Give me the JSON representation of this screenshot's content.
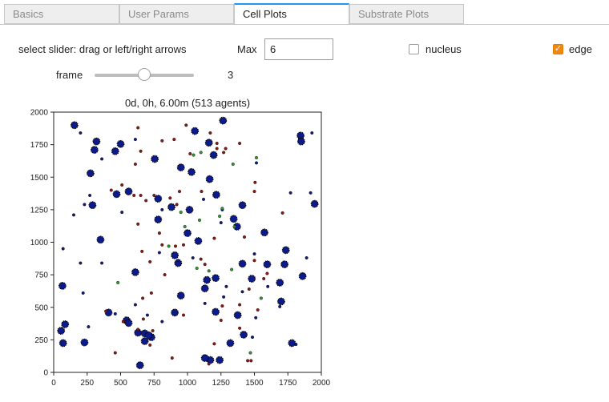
{
  "tabs": [
    {
      "label": "Basics",
      "active": false
    },
    {
      "label": "User Params",
      "active": false
    },
    {
      "label": "Cell Plots",
      "active": true
    },
    {
      "label": "Substrate Plots",
      "active": false
    }
  ],
  "controls": {
    "slider_instruction": "select slider: drag or left/right arrows",
    "max_label": "Max",
    "max_value": "6",
    "nucleus_label": "nucleus",
    "nucleus_checked": false,
    "edge_label": "edge",
    "edge_checked": true,
    "frame_label": "frame",
    "frame_value": "3",
    "accent_color": "#f0880f"
  },
  "chart_data": {
    "type": "scatter",
    "title": "0d, 0h, 6.00m (513 agents)",
    "xlim": [
      0,
      2000
    ],
    "ylim": [
      0,
      2000
    ],
    "xticks": [
      "0",
      "250",
      "500",
      "750",
      "1000",
      "1250",
      "1500",
      "1750",
      "2000"
    ],
    "yticks": [
      "0",
      "250",
      "500",
      "750",
      "1000",
      "1250",
      "1500",
      "1750",
      "2000"
    ],
    "series": [
      {
        "color": "#0b1a8c",
        "kind": "large",
        "points": [
          [
            155,
            1900
          ],
          [
            1265,
            1935
          ],
          [
            1055,
            1855
          ],
          [
            1845,
            1820
          ],
          [
            1850,
            1775
          ],
          [
            320,
            1775
          ],
          [
            305,
            1710
          ],
          [
            500,
            1755
          ],
          [
            460,
            1700
          ],
          [
            755,
            1640
          ],
          [
            1160,
            1765
          ],
          [
            1195,
            1670
          ],
          [
            950,
            1575
          ],
          [
            1030,
            1540
          ],
          [
            1165,
            1485
          ],
          [
            275,
            1530
          ],
          [
            470,
            1370
          ],
          [
            560,
            1390
          ],
          [
            1215,
            1365
          ],
          [
            290,
            1285
          ],
          [
            1950,
            1295
          ],
          [
            780,
            1335
          ],
          [
            880,
            1270
          ],
          [
            1015,
            1250
          ],
          [
            780,
            1175
          ],
          [
            1345,
            1180
          ],
          [
            1410,
            1285
          ],
          [
            1370,
            1120
          ],
          [
            350,
            1020
          ],
          [
            1575,
            1075
          ],
          [
            1000,
            1070
          ],
          [
            1080,
            1010
          ],
          [
            1735,
            940
          ],
          [
            1725,
            830
          ],
          [
            1595,
            830
          ],
          [
            905,
            900
          ],
          [
            930,
            840
          ],
          [
            610,
            770
          ],
          [
            1410,
            835
          ],
          [
            1690,
            690
          ],
          [
            1860,
            740
          ],
          [
            1210,
            725
          ],
          [
            1145,
            710
          ],
          [
            1130,
            645
          ],
          [
            65,
            665
          ],
          [
            1480,
            720
          ],
          [
            1700,
            545
          ],
          [
            950,
            590
          ],
          [
            1375,
            440
          ],
          [
            1210,
            465
          ],
          [
            905,
            460
          ],
          [
            410,
            460
          ],
          [
            545,
            400
          ],
          [
            560,
            380
          ],
          [
            85,
            370
          ],
          [
            55,
            320
          ],
          [
            680,
            300
          ],
          [
            630,
            305
          ],
          [
            680,
            240
          ],
          [
            730,
            270
          ],
          [
            710,
            285
          ],
          [
            1320,
            225
          ],
          [
            1420,
            290
          ],
          [
            1780,
            225
          ],
          [
            70,
            225
          ],
          [
            230,
            230
          ],
          [
            645,
            55
          ],
          [
            1170,
            95
          ],
          [
            1130,
            110
          ],
          [
            1240,
            95
          ]
        ]
      },
      {
        "color": "#8c1a10",
        "kind": "small",
        "points": [
          [
            630,
            1880
          ],
          [
            990,
            1900
          ],
          [
            1170,
            1840
          ],
          [
            900,
            1790
          ],
          [
            1220,
            1760
          ],
          [
            810,
            1780
          ],
          [
            1270,
            1690
          ],
          [
            1220,
            1720
          ],
          [
            1285,
            1720
          ],
          [
            1390,
            1760
          ],
          [
            650,
            1700
          ],
          [
            1020,
            1680
          ],
          [
            610,
            1600
          ],
          [
            510,
            1440
          ],
          [
            430,
            1400
          ],
          [
            600,
            1360
          ],
          [
            650,
            1360
          ],
          [
            750,
            1360
          ],
          [
            870,
            1340
          ],
          [
            940,
            1390
          ],
          [
            1105,
            1390
          ],
          [
            920,
            1290
          ],
          [
            1500,
            1390
          ],
          [
            1505,
            1460
          ],
          [
            1710,
            1225
          ],
          [
            690,
            1320
          ],
          [
            630,
            1140
          ],
          [
            790,
            1070
          ],
          [
            1200,
            1030
          ],
          [
            1425,
            1040
          ],
          [
            810,
            980
          ],
          [
            910,
            970
          ],
          [
            660,
            930
          ],
          [
            720,
            850
          ],
          [
            970,
            980
          ],
          [
            1100,
            870
          ],
          [
            830,
            750
          ],
          [
            1130,
            830
          ],
          [
            1500,
            860
          ],
          [
            1595,
            760
          ],
          [
            1460,
            640
          ],
          [
            1570,
            720
          ],
          [
            1525,
            480
          ],
          [
            730,
            610
          ],
          [
            665,
            570
          ],
          [
            670,
            410
          ],
          [
            1390,
            520
          ],
          [
            1260,
            510
          ],
          [
            970,
            440
          ],
          [
            390,
            470
          ],
          [
            1250,
            400
          ],
          [
            1390,
            340
          ],
          [
            520,
            390
          ],
          [
            720,
            210
          ],
          [
            630,
            330
          ],
          [
            740,
            320
          ],
          [
            460,
            150
          ],
          [
            1200,
            220
          ],
          [
            885,
            110
          ],
          [
            1160,
            65
          ],
          [
            1450,
            90
          ],
          [
            1475,
            90
          ]
        ]
      },
      {
        "color": "#111a80",
        "kind": "small",
        "points": [
          [
            200,
            1840
          ],
          [
            1930,
            1840
          ],
          [
            610,
            1790
          ],
          [
            360,
            1640
          ],
          [
            270,
            1360
          ],
          [
            230,
            1290
          ],
          [
            150,
            1210
          ],
          [
            510,
            1230
          ],
          [
            810,
            1250
          ],
          [
            1260,
            1250
          ],
          [
            1120,
            1330
          ],
          [
            1515,
            1610
          ],
          [
            1770,
            1380
          ],
          [
            1920,
            1380
          ],
          [
            1250,
            1150
          ],
          [
            1500,
            910
          ],
          [
            1890,
            880
          ],
          [
            930,
            860
          ],
          [
            1040,
            880
          ],
          [
            790,
            920
          ],
          [
            360,
            840
          ],
          [
            200,
            840
          ],
          [
            70,
            950
          ],
          [
            220,
            610
          ],
          [
            1290,
            660
          ],
          [
            1270,
            580
          ],
          [
            1410,
            620
          ],
          [
            1690,
            505
          ],
          [
            1510,
            420
          ],
          [
            460,
            450
          ],
          [
            610,
            520
          ],
          [
            260,
            350
          ],
          [
            810,
            390
          ],
          [
            1130,
            530
          ],
          [
            1600,
            660
          ],
          [
            1485,
            270
          ],
          [
            700,
            440
          ],
          [
            1810,
            215
          ]
        ]
      },
      {
        "color": "#2e9d2e",
        "kind": "small",
        "points": [
          [
            1045,
            1670
          ],
          [
            1100,
            1690
          ],
          [
            1340,
            1600
          ],
          [
            1515,
            1650
          ],
          [
            1260,
            1260
          ],
          [
            1240,
            1200
          ],
          [
            950,
            1230
          ],
          [
            1350,
            1120
          ],
          [
            980,
            1120
          ],
          [
            1090,
            1170
          ],
          [
            1070,
            800
          ],
          [
            1330,
            790
          ],
          [
            480,
            690
          ],
          [
            1160,
            780
          ],
          [
            1550,
            570
          ],
          [
            1470,
            150
          ],
          [
            860,
            970
          ]
        ]
      }
    ]
  }
}
